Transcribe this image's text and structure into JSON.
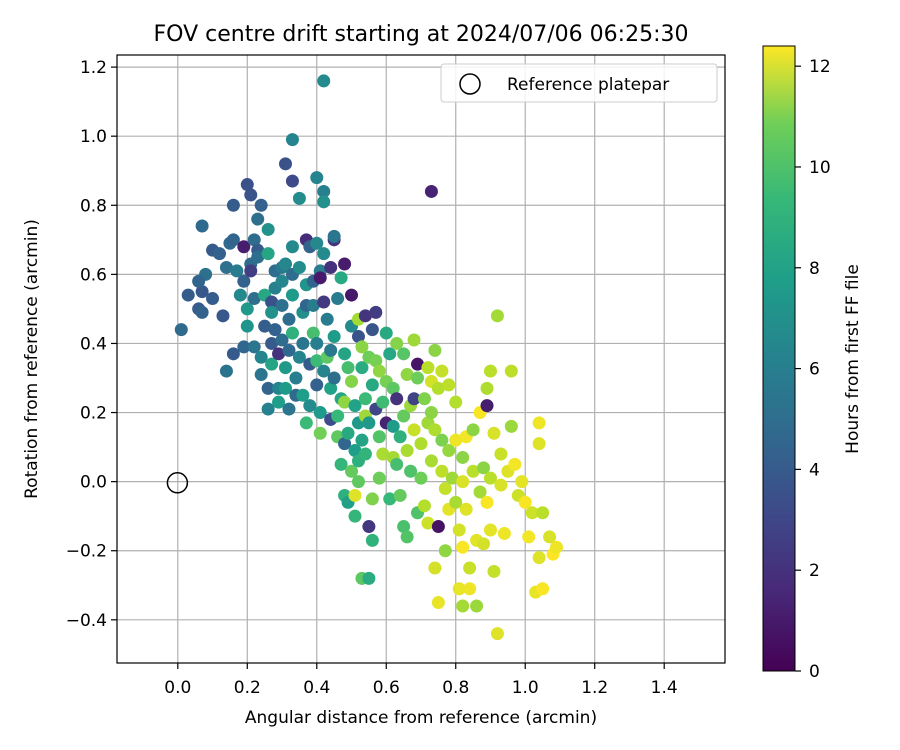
{
  "chart_data": {
    "type": "scatter",
    "title": "FOV centre drift starting at 2024/07/06 06:25:30",
    "xlabel": "Angular distance from reference (arcmin)",
    "ylabel": "Rotation from reference (arcmin)",
    "xlim": [
      -0.175,
      1.575
    ],
    "ylim": [
      -0.525,
      1.235
    ],
    "x_ticks": [
      0.0,
      0.2,
      0.4,
      0.6,
      0.8,
      1.0,
      1.2,
      1.4
    ],
    "x_tick_labels": [
      "0.0",
      "0.2",
      "0.4",
      "0.6",
      "0.8",
      "1.0",
      "1.2",
      "1.4"
    ],
    "y_ticks": [
      -0.4,
      -0.2,
      0.0,
      0.2,
      0.4,
      0.6,
      0.8,
      1.0,
      1.2
    ],
    "y_tick_labels": [
      "−0.4",
      "−0.2",
      "0.0",
      "0.2",
      "0.4",
      "0.6",
      "0.8",
      "1.0",
      "1.2"
    ],
    "grid": true,
    "legend": {
      "position": "upper right",
      "entries": [
        "Reference platepar"
      ]
    },
    "reference_point": {
      "x": 0.0,
      "y": 0.0,
      "label": "Reference platepar"
    },
    "colorbar": {
      "label": "Hours from first FF file",
      "min": 0,
      "max": 12.4,
      "ticks": [
        0,
        2,
        4,
        6,
        8,
        10,
        12
      ],
      "tick_labels": [
        "0",
        "2",
        "4",
        "6",
        "8",
        "10",
        "12"
      ],
      "colormap": "viridis"
    },
    "points": [
      [
        0.01,
        0.44,
        4.3
      ],
      [
        0.03,
        0.54,
        3.6
      ],
      [
        0.06,
        0.5,
        3.6
      ],
      [
        0.07,
        0.55,
        3.4
      ],
      [
        0.08,
        0.6,
        4.6
      ],
      [
        0.06,
        0.58,
        4.0
      ],
      [
        0.07,
        0.74,
        4.2
      ],
      [
        0.07,
        0.49,
        3.9
      ],
      [
        0.1,
        0.53,
        3.7
      ],
      [
        0.1,
        0.67,
        3.5
      ],
      [
        0.12,
        0.66,
        3.8
      ],
      [
        0.13,
        0.48,
        3.4
      ],
      [
        0.14,
        0.32,
        4.7
      ],
      [
        0.14,
        0.62,
        4.6
      ],
      [
        0.15,
        0.69,
        4.2
      ],
      [
        0.16,
        0.7,
        4.0
      ],
      [
        0.16,
        0.8,
        3.6
      ],
      [
        0.16,
        0.37,
        3.5
      ],
      [
        0.17,
        0.61,
        5.2
      ],
      [
        0.18,
        0.54,
        5.8
      ],
      [
        0.19,
        0.68,
        1.0
      ],
      [
        0.19,
        0.39,
        4.1
      ],
      [
        0.19,
        0.58,
        3.8
      ],
      [
        0.2,
        0.45,
        6.4
      ],
      [
        0.2,
        0.5,
        6.6
      ],
      [
        0.2,
        0.86,
        3.1
      ],
      [
        0.21,
        0.83,
        3.2
      ],
      [
        0.21,
        0.63,
        4.3
      ],
      [
        0.21,
        0.61,
        2.3
      ],
      [
        0.22,
        0.53,
        4.5
      ],
      [
        0.22,
        0.39,
        4.8
      ],
      [
        0.22,
        0.7,
        4.4
      ],
      [
        0.23,
        0.76,
        4.5
      ],
      [
        0.23,
        0.67,
        3.5
      ],
      [
        0.23,
        0.65,
        4.5
      ],
      [
        0.24,
        0.36,
        5.6
      ],
      [
        0.24,
        0.31,
        4.8
      ],
      [
        0.24,
        0.8,
        3.8
      ],
      [
        0.25,
        0.54,
        7.4
      ],
      [
        0.25,
        0.45,
        3.7
      ],
      [
        0.26,
        0.27,
        4.0
      ],
      [
        0.26,
        0.21,
        5.5
      ],
      [
        0.26,
        0.73,
        6.3
      ],
      [
        0.26,
        0.66,
        7.3
      ],
      [
        0.27,
        0.34,
        7.2
      ],
      [
        0.27,
        0.52,
        3.1
      ],
      [
        0.27,
        0.49,
        6.3
      ],
      [
        0.27,
        0.4,
        3.5
      ],
      [
        0.28,
        0.61,
        4.4
      ],
      [
        0.28,
        0.56,
        5.4
      ],
      [
        0.28,
        0.44,
        3.8
      ],
      [
        0.29,
        0.27,
        5.6
      ],
      [
        0.29,
        0.23,
        6.9
      ],
      [
        0.29,
        0.37,
        1.8
      ],
      [
        0.3,
        0.62,
        5.1
      ],
      [
        0.3,
        0.58,
        5.7
      ],
      [
        0.3,
        0.51,
        4.6
      ],
      [
        0.3,
        0.41,
        4.4
      ],
      [
        0.31,
        0.92,
        3.1
      ],
      [
        0.31,
        0.27,
        6.8
      ],
      [
        0.31,
        0.33,
        6.6
      ],
      [
        0.31,
        0.63,
        5.7
      ],
      [
        0.32,
        0.21,
        4.9
      ],
      [
        0.32,
        0.47,
        4.4
      ],
      [
        0.32,
        0.38,
        4.2
      ],
      [
        0.33,
        0.87,
        2.8
      ],
      [
        0.33,
        0.99,
        5.6
      ],
      [
        0.33,
        0.68,
        5.9
      ],
      [
        0.33,
        0.6,
        4.4
      ],
      [
        0.33,
        0.54,
        6.7
      ],
      [
        0.33,
        0.43,
        7.9
      ],
      [
        0.34,
        0.3,
        5.3
      ],
      [
        0.34,
        0.25,
        4.3
      ],
      [
        0.35,
        0.62,
        6.0
      ],
      [
        0.35,
        0.36,
        5.6
      ],
      [
        0.35,
        0.82,
        6.0
      ],
      [
        0.36,
        0.4,
        4.8
      ],
      [
        0.36,
        0.49,
        6.1
      ],
      [
        0.36,
        0.25,
        6.9
      ],
      [
        0.37,
        0.7,
        1.6
      ],
      [
        0.37,
        0.57,
        6.4
      ],
      [
        0.37,
        0.51,
        4.0
      ],
      [
        0.37,
        0.17,
        8.4
      ],
      [
        0.38,
        0.68,
        3.9
      ],
      [
        0.38,
        0.22,
        6.0
      ],
      [
        0.38,
        0.34,
        3.6
      ],
      [
        0.39,
        0.43,
        8.7
      ],
      [
        0.39,
        0.51,
        5.2
      ],
      [
        0.39,
        0.58,
        4.0
      ],
      [
        0.4,
        0.69,
        5.8
      ],
      [
        0.4,
        0.35,
        8.4
      ],
      [
        0.4,
        0.4,
        5.3
      ],
      [
        0.4,
        0.28,
        3.8
      ],
      [
        0.4,
        0.88,
        5.6
      ],
      [
        0.41,
        0.2,
        6.7
      ],
      [
        0.41,
        0.61,
        5.3
      ],
      [
        0.41,
        0.14,
        9.7
      ],
      [
        0.41,
        0.59,
        0.9
      ],
      [
        0.42,
        1.16,
        5.9
      ],
      [
        0.42,
        0.84,
        5.4
      ],
      [
        0.42,
        0.81,
        6.2
      ],
      [
        0.42,
        0.66,
        5.9
      ],
      [
        0.42,
        0.52,
        2.1
      ],
      [
        0.42,
        0.32,
        5.6
      ],
      [
        0.43,
        0.47,
        5.2
      ],
      [
        0.43,
        0.36,
        9.2
      ],
      [
        0.44,
        0.27,
        7.1
      ],
      [
        0.44,
        0.18,
        2.9
      ],
      [
        0.44,
        0.62,
        1.8
      ],
      [
        0.44,
        0.38,
        5.0
      ],
      [
        0.45,
        0.7,
        1.9
      ],
      [
        0.45,
        0.71,
        4.9
      ],
      [
        0.45,
        0.42,
        6.8
      ],
      [
        0.45,
        0.3,
        4.5
      ],
      [
        0.46,
        0.53,
        5.2
      ],
      [
        0.46,
        0.13,
        9.3
      ],
      [
        0.46,
        0.19,
        8.3
      ],
      [
        0.47,
        0.24,
        7.3
      ],
      [
        0.47,
        0.59,
        7.5
      ],
      [
        0.47,
        0.05,
        8.2
      ],
      [
        0.48,
        0.63,
        1.0
      ],
      [
        0.48,
        0.37,
        7.2
      ],
      [
        0.48,
        0.23,
        10.3
      ],
      [
        0.48,
        0.11,
        4.1
      ],
      [
        0.48,
        -0.04,
        7.9
      ],
      [
        0.49,
        -0.06,
        7.0
      ],
      [
        0.49,
        0.33,
        8.7
      ],
      [
        0.49,
        0.14,
        7.5
      ],
      [
        0.5,
        0.54,
        0.8
      ],
      [
        0.5,
        0.29,
        10.1
      ],
      [
        0.5,
        0.45,
        5.9
      ],
      [
        0.5,
        0.03,
        9.4
      ],
      [
        0.51,
        0.09,
        6.9
      ],
      [
        0.51,
        -0.1,
        8.2
      ],
      [
        0.51,
        -0.04,
        11.8
      ],
      [
        0.51,
        0.22,
        7.1
      ],
      [
        0.52,
        0.47,
        10.7
      ],
      [
        0.52,
        0.42,
        3.2
      ],
      [
        0.52,
        0.17,
        6.6
      ],
      [
        0.52,
        0.06,
        7.8
      ],
      [
        0.52,
        0.0,
        9.3
      ],
      [
        0.53,
        0.39,
        10.2
      ],
      [
        0.53,
        0.33,
        7.6
      ],
      [
        0.53,
        0.12,
        7.2
      ],
      [
        0.53,
        -0.28,
        9.2
      ],
      [
        0.54,
        0.48,
        1.9
      ],
      [
        0.54,
        0.24,
        8.4
      ],
      [
        0.54,
        0.19,
        10.6
      ],
      [
        0.54,
        0.08,
        8.1
      ],
      [
        0.55,
        -0.13,
        2.0
      ],
      [
        0.55,
        -0.28,
        7.6
      ],
      [
        0.55,
        0.36,
        9.6
      ],
      [
        0.55,
        0.17,
        6.6
      ],
      [
        0.56,
        0.44,
        3.3
      ],
      [
        0.56,
        0.28,
        7.5
      ],
      [
        0.56,
        -0.05,
        10.0
      ],
      [
        0.56,
        -0.17,
        8.0
      ],
      [
        0.57,
        0.49,
        2.2
      ],
      [
        0.57,
        0.35,
        9.8
      ],
      [
        0.57,
        0.21,
        2.7
      ],
      [
        0.58,
        0.13,
        9.0
      ],
      [
        0.58,
        0.01,
        9.6
      ],
      [
        0.58,
        0.32,
        10.3
      ],
      [
        0.59,
        0.23,
        8.5
      ],
      [
        0.59,
        0.08,
        10.8
      ],
      [
        0.6,
        0.43,
        7.5
      ],
      [
        0.6,
        0.29,
        9.8
      ],
      [
        0.6,
        0.17,
        1.2
      ],
      [
        0.61,
        0.37,
        7.4
      ],
      [
        0.61,
        -0.05,
        8.3
      ],
      [
        0.62,
        0.27,
        9.2
      ],
      [
        0.62,
        0.16,
        6.8
      ],
      [
        0.62,
        0.07,
        10.7
      ],
      [
        0.63,
        0.4,
        10.1
      ],
      [
        0.63,
        0.24,
        1.8
      ],
      [
        0.63,
        0.05,
        8.7
      ],
      [
        0.64,
        -0.04,
        9.4
      ],
      [
        0.64,
        0.13,
        7.9
      ],
      [
        0.65,
        0.37,
        9.1
      ],
      [
        0.65,
        0.19,
        9.4
      ],
      [
        0.65,
        -0.13,
        8.8
      ],
      [
        0.66,
        0.09,
        10.8
      ],
      [
        0.66,
        0.31,
        10.3
      ],
      [
        0.66,
        -0.16,
        9.0
      ],
      [
        0.67,
        0.22,
        10.5
      ],
      [
        0.67,
        0.03,
        8.9
      ],
      [
        0.68,
        0.41,
        10.6
      ],
      [
        0.68,
        0.24,
        2.5
      ],
      [
        0.68,
        0.15,
        11.4
      ],
      [
        0.69,
        0.34,
        0.7
      ],
      [
        0.69,
        0.3,
        9.6
      ],
      [
        0.69,
        -0.09,
        8.9
      ],
      [
        0.7,
        0.11,
        10.9
      ],
      [
        0.7,
        0.01,
        9.6
      ],
      [
        0.71,
        0.24,
        10.0
      ],
      [
        0.71,
        -0.07,
        11.0
      ],
      [
        0.72,
        0.33,
        11.1
      ],
      [
        0.72,
        0.17,
        10.6
      ],
      [
        0.72,
        -0.12,
        11.5
      ],
      [
        0.73,
        0.84,
        1.2
      ],
      [
        0.73,
        0.29,
        11.6
      ],
      [
        0.73,
        0.2,
        10.2
      ],
      [
        0.73,
        0.06,
        10.8
      ],
      [
        0.74,
        -0.25,
        11.6
      ],
      [
        0.74,
        0.38,
        10.2
      ],
      [
        0.74,
        0.15,
        10.9
      ],
      [
        0.75,
        -0.13,
        0.6
      ],
      [
        0.75,
        0.27,
        11.0
      ],
      [
        0.75,
        -0.35,
        12.0
      ],
      [
        0.76,
        0.32,
        11.3
      ],
      [
        0.76,
        0.03,
        11.2
      ],
      [
        0.76,
        0.12,
        9.9
      ],
      [
        0.77,
        -0.02,
        11.3
      ],
      [
        0.77,
        -0.2,
        10.3
      ],
      [
        0.78,
        0.28,
        11.2
      ],
      [
        0.78,
        0.09,
        10.4
      ],
      [
        0.78,
        -0.08,
        11.9
      ],
      [
        0.79,
        0.01,
        10.6
      ],
      [
        0.8,
        0.12,
        12.1
      ],
      [
        0.8,
        -0.06,
        10.8
      ],
      [
        0.8,
        0.23,
        11.0
      ],
      [
        0.81,
        -0.14,
        11.6
      ],
      [
        0.81,
        -0.31,
        12.0
      ],
      [
        0.82,
        0.07,
        10.2
      ],
      [
        0.82,
        0.0,
        11.7
      ],
      [
        0.82,
        -0.19,
        12.3
      ],
      [
        0.82,
        -0.36,
        10.7
      ],
      [
        0.83,
        0.13,
        12.2
      ],
      [
        0.83,
        -0.08,
        11.8
      ],
      [
        0.84,
        -0.25,
        11.4
      ],
      [
        0.84,
        -0.31,
        12.1
      ],
      [
        0.85,
        0.15,
        10.2
      ],
      [
        0.85,
        0.03,
        11.1
      ],
      [
        0.86,
        -0.17,
        11.9
      ],
      [
        0.86,
        -0.36,
        10.5
      ],
      [
        0.87,
        0.2,
        12.3
      ],
      [
        0.87,
        -0.03,
        10.7
      ],
      [
        0.88,
        0.04,
        10.2
      ],
      [
        0.88,
        -0.18,
        11.6
      ],
      [
        0.89,
        0.27,
        10.9
      ],
      [
        0.89,
        0.22,
        1.0
      ],
      [
        0.89,
        -0.06,
        12.3
      ],
      [
        0.9,
        0.32,
        11.1
      ],
      [
        0.9,
        0.01,
        11.1
      ],
      [
        0.9,
        -0.14,
        11.9
      ],
      [
        0.91,
        0.14,
        11.7
      ],
      [
        0.91,
        -0.26,
        11.3
      ],
      [
        0.92,
        -0.44,
        11.8
      ],
      [
        0.92,
        0.48,
        10.7
      ],
      [
        0.93,
        0.08,
        11.4
      ],
      [
        0.93,
        -0.01,
        11.7
      ],
      [
        0.94,
        -0.15,
        12.1
      ],
      [
        0.95,
        0.03,
        11.8
      ],
      [
        0.96,
        0.16,
        10.5
      ],
      [
        0.96,
        0.32,
        11.2
      ],
      [
        0.97,
        0.05,
        12.2
      ],
      [
        0.98,
        -0.04,
        11.5
      ],
      [
        0.99,
        0.0,
        11.9
      ],
      [
        1.0,
        -0.06,
        12.3
      ],
      [
        1.01,
        -0.16,
        12.2
      ],
      [
        1.02,
        -0.09,
        11.5
      ],
      [
        1.03,
        -0.32,
        12.0
      ],
      [
        1.04,
        -0.22,
        11.8
      ],
      [
        1.04,
        0.11,
        11.8
      ],
      [
        1.04,
        0.17,
        12.1
      ],
      [
        1.05,
        -0.09,
        11.1
      ],
      [
        1.05,
        -0.31,
        12.3
      ],
      [
        1.07,
        -0.16,
        11.7
      ],
      [
        1.08,
        -0.21,
        12.4
      ],
      [
        1.09,
        -0.19,
        12.1
      ]
    ]
  }
}
